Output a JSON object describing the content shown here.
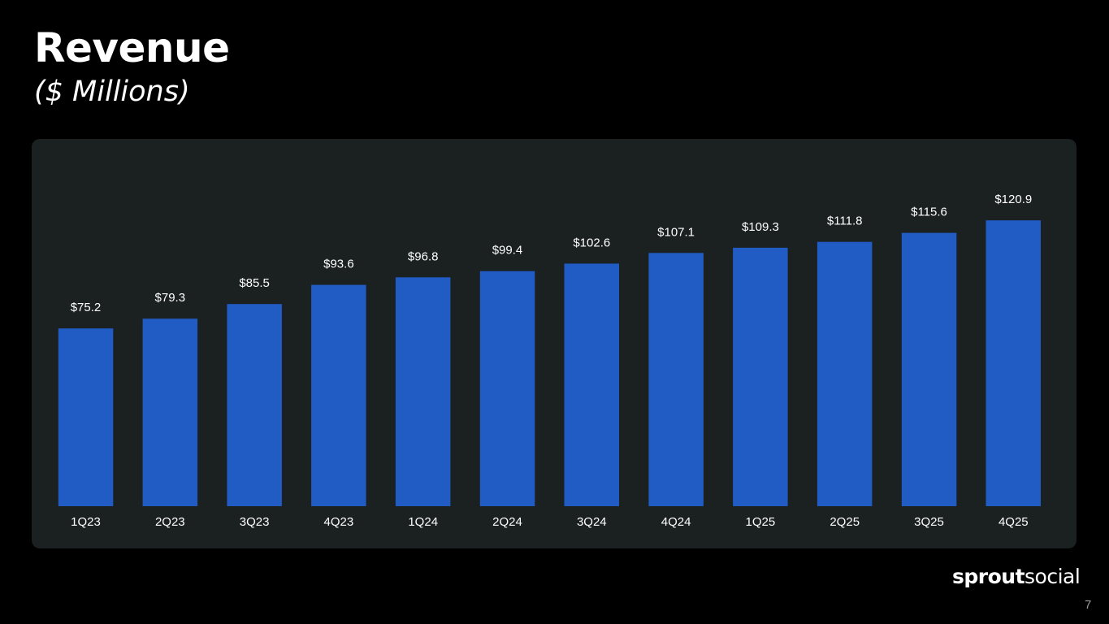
{
  "header": {
    "title": "Revenue",
    "subtitle": "($ Millions)"
  },
  "footer": {
    "logo_bold": "sprout",
    "logo_light": "social",
    "page_number": "7"
  },
  "colors": {
    "background": "#000000",
    "panel": "#1b2021",
    "bar": "#215bc4",
    "text": "#ffffff"
  },
  "chart_data": {
    "type": "bar",
    "categories": [
      "1Q23",
      "2Q23",
      "3Q23",
      "4Q23",
      "1Q24",
      "2Q24",
      "3Q24",
      "4Q24",
      "1Q25",
      "2Q25",
      "3Q25",
      "4Q25"
    ],
    "values": [
      75.2,
      79.3,
      85.5,
      93.6,
      96.8,
      99.4,
      102.6,
      107.1,
      109.3,
      111.8,
      115.6,
      120.9
    ],
    "data_labels": [
      "$75.2",
      "$79.3",
      "$85.5",
      "$93.6",
      "$96.8",
      "$99.4",
      "$102.6",
      "$107.1",
      "$109.3",
      "$111.8",
      "$115.6",
      "$120.9"
    ],
    "title": "Revenue",
    "subtitle": "($ Millions)",
    "xlabel": "",
    "ylabel": "",
    "grid": false,
    "legend": "none"
  }
}
